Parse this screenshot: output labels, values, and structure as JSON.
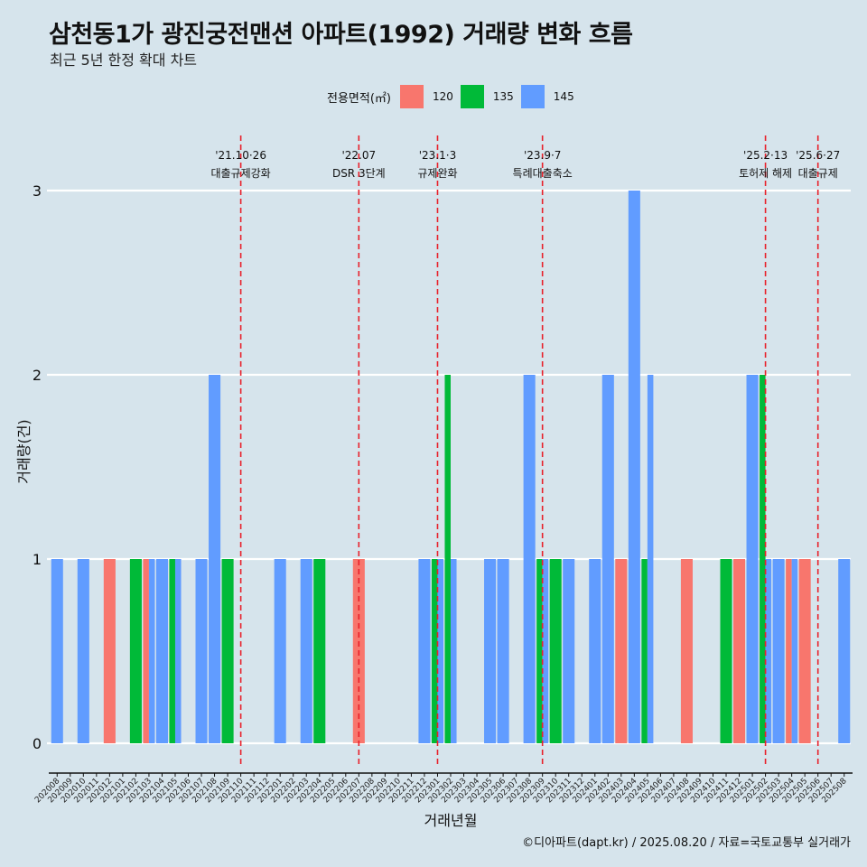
{
  "header": {
    "title": "삼천동1가 광진궁전맨션 아파트(1992) 거래량 변화 흐름",
    "subtitle": "최근 5년 한정 확대 차트"
  },
  "legend": {
    "title": "전용면적(㎡)",
    "items": [
      {
        "label": "120",
        "color": "#f8766d"
      },
      {
        "label": "135",
        "color": "#00ba38"
      },
      {
        "label": "145",
        "color": "#619cff"
      }
    ]
  },
  "caption": "©디아파트(dapt.kr) / 2025.08.20 / 자료=국토교통부 실거래가",
  "chart_data": {
    "type": "bar",
    "xlabel": "거래년월",
    "ylabel": "거래량(건)",
    "ylim": [
      0,
      3
    ],
    "yticks": [
      0,
      1,
      2,
      3
    ],
    "grid": "horizontal",
    "legend_position": "top",
    "categories": [
      "202008",
      "202009",
      "202010",
      "202011",
      "202012",
      "202101",
      "202102",
      "202103",
      "202104",
      "202105",
      "202106",
      "202107",
      "202108",
      "202109",
      "202110",
      "202111",
      "202112",
      "202201",
      "202202",
      "202203",
      "202204",
      "202205",
      "202206",
      "202207",
      "202208",
      "202209",
      "202210",
      "202211",
      "202212",
      "202301",
      "202302",
      "202303",
      "202304",
      "202305",
      "202306",
      "202307",
      "202308",
      "202309",
      "202310",
      "202311",
      "202312",
      "202401",
      "202402",
      "202403",
      "202404",
      "202405",
      "202406",
      "202407",
      "202408",
      "202409",
      "202410",
      "202411",
      "202412",
      "202501",
      "202502",
      "202503",
      "202504",
      "202505",
      "202506",
      "202507",
      "202508"
    ],
    "series": [
      {
        "name": "120",
        "color": "#f8766d",
        "values": [
          0,
          0,
          0,
          0,
          1,
          0,
          0,
          1,
          0,
          0,
          0,
          0,
          0,
          0,
          0,
          0,
          0,
          0,
          0,
          0,
          0,
          0,
          0,
          1,
          0,
          0,
          0,
          0,
          0,
          0,
          0,
          0,
          0,
          0,
          0,
          0,
          0,
          0,
          0,
          0,
          0,
          0,
          0,
          1,
          0,
          0,
          0,
          0,
          1,
          0,
          0,
          0,
          1,
          0,
          0,
          0,
          1,
          1,
          0,
          0,
          0
        ]
      },
      {
        "name": "135",
        "color": "#00ba38",
        "values": [
          0,
          0,
          0,
          0,
          0,
          0,
          1,
          0,
          0,
          1,
          0,
          0,
          0,
          1,
          0,
          0,
          0,
          0,
          0,
          0,
          1,
          0,
          0,
          0,
          0,
          0,
          0,
          0,
          0,
          1,
          2,
          0,
          0,
          0,
          0,
          0,
          0,
          1,
          1,
          0,
          0,
          0,
          0,
          0,
          0,
          1,
          0,
          0,
          0,
          0,
          0,
          1,
          0,
          0,
          2,
          0,
          0,
          0,
          0,
          0,
          0
        ]
      },
      {
        "name": "145",
        "color": "#619cff",
        "values": [
          1,
          0,
          1,
          0,
          0,
          0,
          0,
          1,
          1,
          1,
          0,
          1,
          2,
          0,
          0,
          0,
          0,
          1,
          0,
          1,
          0,
          0,
          0,
          0,
          0,
          0,
          0,
          0,
          1,
          1,
          1,
          0,
          0,
          1,
          1,
          0,
          2,
          1,
          0,
          1,
          0,
          1,
          2,
          0,
          3,
          2,
          0,
          0,
          0,
          0,
          0,
          0,
          0,
          2,
          1,
          1,
          1,
          0,
          0,
          0,
          1
        ]
      }
    ],
    "events": [
      {
        "date": "'21.10·26",
        "label": "대출규제강화",
        "at": "202110"
      },
      {
        "date": "'22.07",
        "label": "DSR 3단계",
        "at": "202207"
      },
      {
        "date": "'23.1·3",
        "label": "규제완화",
        "at": "202301"
      },
      {
        "date": "'23.9·7",
        "label": "특례대출축소",
        "at": "202309"
      },
      {
        "date": "'25.2·13",
        "label": "토허제 해제",
        "at": "202502"
      },
      {
        "date": "'25.6·27",
        "label": "대출규제",
        "at": "202506"
      }
    ]
  }
}
